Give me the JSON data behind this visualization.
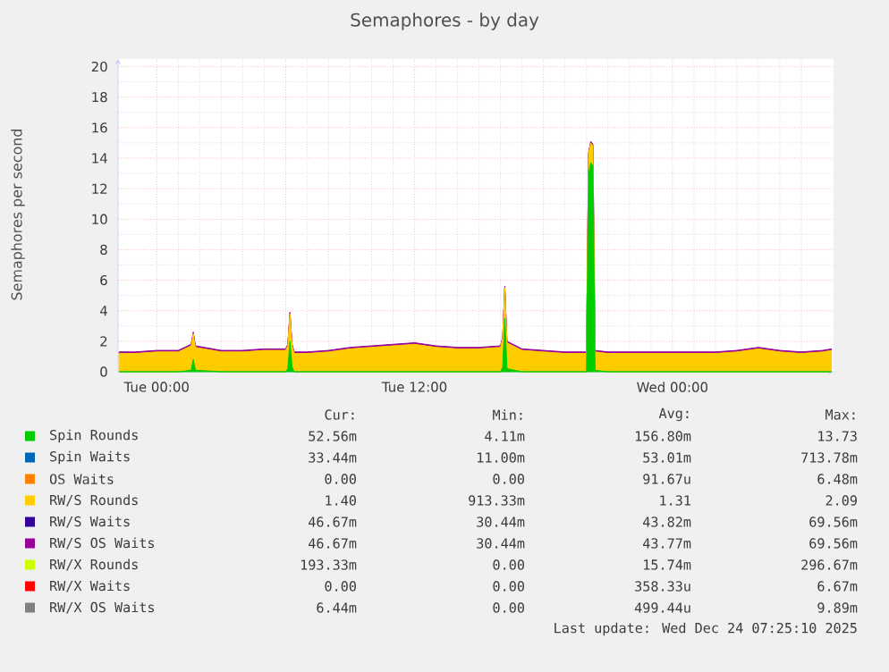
{
  "chart_data": {
    "type": "area",
    "stacked": true,
    "title": "Semaphores - by day",
    "ylabel": "Semaphores per second",
    "x": [
      "2025-12-22T22:15",
      "2025-12-22T23:00",
      "2025-12-23T00:00",
      "2025-12-23T01:00",
      "2025-12-23T01:36",
      "2025-12-23T01:42",
      "2025-12-23T01:48",
      "2025-12-23T03:00",
      "2025-12-23T04:00",
      "2025-12-23T05:00",
      "2025-12-23T06:00",
      "2025-12-23T06:06",
      "2025-12-23T06:12",
      "2025-12-23T06:18",
      "2025-12-23T06:24",
      "2025-12-23T07:00",
      "2025-12-23T08:00",
      "2025-12-23T09:00",
      "2025-12-23T10:00",
      "2025-12-23T11:00",
      "2025-12-23T12:00",
      "2025-12-23T13:00",
      "2025-12-23T14:00",
      "2025-12-23T15:00",
      "2025-12-23T16:00",
      "2025-12-23T16:06",
      "2025-12-23T16:12",
      "2025-12-23T16:18",
      "2025-12-23T17:00",
      "2025-12-23T18:00",
      "2025-12-23T19:00",
      "2025-12-23T20:00",
      "2025-12-23T20:06",
      "2025-12-23T20:12",
      "2025-12-23T20:18",
      "2025-12-23T20:24",
      "2025-12-23T21:00",
      "2025-12-23T22:00",
      "2025-12-23T23:00",
      "2025-12-24T00:00",
      "2025-12-24T01:00",
      "2025-12-24T02:00",
      "2025-12-24T03:00",
      "2025-12-24T04:00",
      "2025-12-24T05:00",
      "2025-12-24T06:00",
      "2025-12-24T07:00",
      "2025-12-24T07:24"
    ],
    "xlim": [
      "2025-12-22T22:12",
      "2025-12-24T07:30"
    ],
    "xticks": [
      {
        "value": "2025-12-23T00:00",
        "label": "Tue 00:00"
      },
      {
        "value": "2025-12-23T06:00",
        "label": null
      },
      {
        "value": "2025-12-23T12:00",
        "label": "Tue 12:00"
      },
      {
        "value": "2025-12-23T18:00",
        "label": null
      },
      {
        "value": "2025-12-24T00:00",
        "label": "Wed 00:00"
      },
      {
        "value": "2025-12-24T06:00",
        "label": null
      }
    ],
    "ylim": [
      0,
      20.5
    ],
    "yticks": [
      0,
      2,
      4,
      6,
      8,
      10,
      12,
      14,
      16,
      18,
      20
    ],
    "grid": true,
    "legend": "bottom",
    "series": [
      {
        "name": "Spin Rounds",
        "color": "#00cc00",
        "values": [
          0,
          0,
          0,
          0,
          0.1,
          0.8,
          0.1,
          0,
          0,
          0,
          0,
          0.2,
          2.0,
          0.3,
          0,
          0,
          0,
          0,
          0,
          0,
          0,
          0,
          0,
          0,
          0,
          0.3,
          3.5,
          0.2,
          0,
          0,
          0,
          0,
          13.0,
          13.7,
          13.5,
          0.1,
          0,
          0,
          0,
          0,
          0,
          0,
          0,
          0,
          0,
          0,
          0,
          0
        ]
      },
      {
        "name": "Spin Waits",
        "color": "#0066b3",
        "values": [
          null,
          null,
          null,
          null,
          null,
          null,
          null,
          null,
          null,
          null,
          null,
          null,
          null,
          null,
          null,
          null,
          null,
          null,
          null,
          null,
          null,
          null,
          null,
          null,
          null,
          null,
          null,
          null,
          null,
          null,
          null,
          null,
          null,
          null,
          null,
          null,
          null,
          null,
          null,
          null,
          null,
          null,
          null,
          null,
          null,
          null,
          null,
          null
        ]
      },
      {
        "name": "OS Waits",
        "color": "#ff8000",
        "values": [
          null,
          null,
          null,
          null,
          null,
          null,
          null,
          null,
          null,
          null,
          null,
          null,
          null,
          null,
          null,
          null,
          null,
          null,
          null,
          null,
          null,
          null,
          null,
          null,
          null,
          null,
          null,
          null,
          null,
          null,
          null,
          null,
          null,
          null,
          null,
          null,
          null,
          null,
          null,
          null,
          null,
          null,
          null,
          null,
          null,
          null,
          null,
          null
        ]
      },
      {
        "name": "RW/S Rounds",
        "color": "#ffcc00",
        "values": [
          1.2,
          1.2,
          1.3,
          1.3,
          1.6,
          1.7,
          1.5,
          1.3,
          1.3,
          1.4,
          1.4,
          1.5,
          1.8,
          1.4,
          1.2,
          1.2,
          1.3,
          1.5,
          1.6,
          1.7,
          1.8,
          1.6,
          1.5,
          1.5,
          1.6,
          1.9,
          2.0,
          1.7,
          1.4,
          1.3,
          1.2,
          1.2,
          1.3,
          1.3,
          1.3,
          1.2,
          1.2,
          1.2,
          1.2,
          1.2,
          1.2,
          1.2,
          1.3,
          1.5,
          1.3,
          1.2,
          1.3,
          1.4
        ]
      },
      {
        "name": "RW/S Waits",
        "color": "#330099",
        "values": [
          null,
          null,
          null,
          null,
          null,
          null,
          null,
          null,
          null,
          null,
          null,
          null,
          null,
          null,
          null,
          null,
          null,
          null,
          null,
          null,
          null,
          null,
          null,
          null,
          null,
          null,
          null,
          null,
          null,
          null,
          null,
          null,
          null,
          null,
          null,
          null,
          null,
          null,
          null,
          null,
          null,
          null,
          null,
          null,
          null,
          null,
          null,
          null
        ]
      },
      {
        "name": "RW/S OS Waits",
        "color": "#990099",
        "values": [
          0.1,
          0.1,
          0.1,
          0.1,
          0.1,
          0.1,
          0.1,
          0.1,
          0.1,
          0.1,
          0.1,
          0.1,
          0.1,
          0.1,
          0.1,
          0.1,
          0.1,
          0.1,
          0.1,
          0.1,
          0.1,
          0.1,
          0.1,
          0.1,
          0.1,
          0.1,
          0.1,
          0.1,
          0.1,
          0.1,
          0.1,
          0.1,
          0.1,
          0.1,
          0.1,
          0.1,
          0.1,
          0.1,
          0.1,
          0.1,
          0.1,
          0.1,
          0.1,
          0.1,
          0.1,
          0.1,
          0.1,
          0.1
        ]
      },
      {
        "name": "RW/X Rounds",
        "color": "#ccff00",
        "values": [
          null,
          null,
          null,
          null,
          null,
          null,
          null,
          null,
          null,
          null,
          null,
          null,
          null,
          null,
          null,
          null,
          null,
          null,
          null,
          null,
          null,
          null,
          null,
          null,
          null,
          null,
          null,
          null,
          null,
          null,
          null,
          null,
          null,
          null,
          null,
          null,
          null,
          null,
          null,
          null,
          null,
          null,
          null,
          null,
          null,
          null,
          null,
          null
        ]
      },
      {
        "name": "RW/X Waits",
        "color": "#ff0000",
        "values": [
          null,
          null,
          null,
          null,
          null,
          null,
          null,
          null,
          null,
          null,
          null,
          null,
          null,
          null,
          null,
          null,
          null,
          null,
          null,
          null,
          null,
          null,
          null,
          null,
          null,
          null,
          null,
          null,
          null,
          null,
          null,
          null,
          null,
          null,
          null,
          null,
          null,
          null,
          null,
          null,
          null,
          null,
          null,
          null,
          null,
          null,
          null,
          null
        ]
      },
      {
        "name": "RW/X OS Waits",
        "color": "#808080",
        "values": [
          null,
          null,
          null,
          null,
          null,
          null,
          null,
          null,
          null,
          null,
          null,
          null,
          null,
          null,
          null,
          null,
          null,
          null,
          null,
          null,
          null,
          null,
          null,
          null,
          null,
          null,
          null,
          null,
          null,
          null,
          null,
          null,
          null,
          null,
          null,
          null,
          null,
          null,
          null,
          null,
          null,
          null,
          null,
          null,
          null,
          null,
          null,
          null
        ]
      }
    ],
    "annotations": [
      "Cur:",
      "Min:",
      "Avg:",
      "Max:",
      "52.56m",
      "4.11m",
      "156.80m",
      "13.73",
      "33.44m",
      "11.00m",
      "53.01m",
      "713.78m",
      "0.00",
      "0.00",
      "91.67u",
      "6.48m",
      "1.40",
      "913.33m",
      "1.31",
      "2.09",
      "46.67m",
      "30.44m",
      "43.82m",
      "69.56m",
      "46.67m",
      "30.44m",
      "43.77m",
      "69.56m",
      "193.33m",
      "0.00",
      "15.74m",
      "296.67m",
      "0.00",
      "0.00",
      "358.33u",
      "6.67m",
      "6.44m",
      "0.00",
      "499.44u",
      "9.89m",
      "Last update: Wed Dec 24 07:25:10 2025"
    ]
  }
}
